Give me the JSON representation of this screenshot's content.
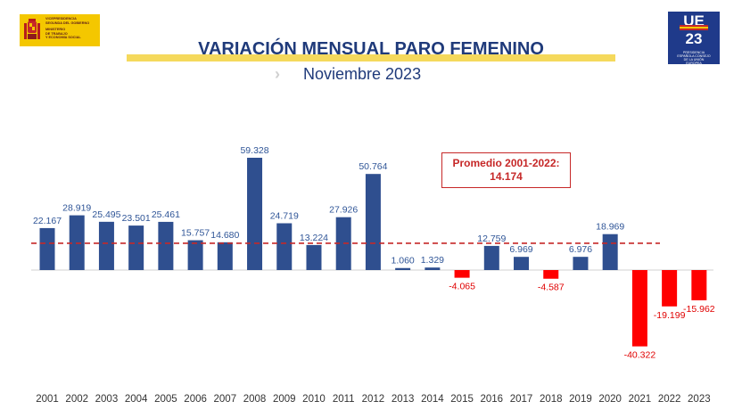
{
  "header": {
    "gov_logo_lines": [
      "Vicepresidencia",
      "Segunda del Gobierno",
      "Ministerio",
      "de Trabajo",
      "y Economía Social"
    ],
    "eu_logo": {
      "top": "UE",
      "bottom": "23",
      "caption": "Presidencia Española Consejo de la Unión Europea"
    },
    "title": "VARIACIÓN MENSUAL PARO FEMENINO",
    "subtitle": "Noviembre 2023",
    "chevron": "›"
  },
  "colors": {
    "positive": "#2f4f8f",
    "negative": "#ff0000",
    "average_line": "#c62828",
    "title": "#1f3a7a",
    "title_bar": "#f5d95c"
  },
  "average_box": {
    "line1": "Promedio 2001-2022:",
    "line2": "14.174"
  },
  "chart_data": {
    "type": "bar",
    "title": "VARIACIÓN MENSUAL PARO FEMENINO",
    "subtitle": "Noviembre 2023",
    "categories": [
      "2001",
      "2002",
      "2003",
      "2004",
      "2005",
      "2006",
      "2007",
      "2008",
      "2009",
      "2010",
      "2011",
      "2012",
      "2013",
      "2014",
      "2015",
      "2016",
      "2017",
      "2018",
      "2019",
      "2020",
      "2021",
      "2022",
      "2023"
    ],
    "values": [
      22167,
      28919,
      25495,
      23501,
      25461,
      15757,
      14680,
      59328,
      24719,
      13224,
      27926,
      50764,
      1060,
      1329,
      -4065,
      12759,
      6969,
      -4587,
      6976,
      18969,
      -40322,
      -19199,
      -15962
    ],
    "labels": [
      "22.167",
      "28.919",
      "25.495",
      "23.501",
      "25.461",
      "15.757",
      "14.680",
      "59.328",
      "24.719",
      "13.224",
      "27.926",
      "50.764",
      "1.060",
      "1.329",
      "-4.065",
      "12.759",
      "6.969",
      "-4.587",
      "6.976",
      "18.969",
      "-40.322",
      "-19.199",
      "-15.962"
    ],
    "average": {
      "value": 14174
    },
    "ylim": [
      -45000,
      60000
    ],
    "grid": false
  }
}
